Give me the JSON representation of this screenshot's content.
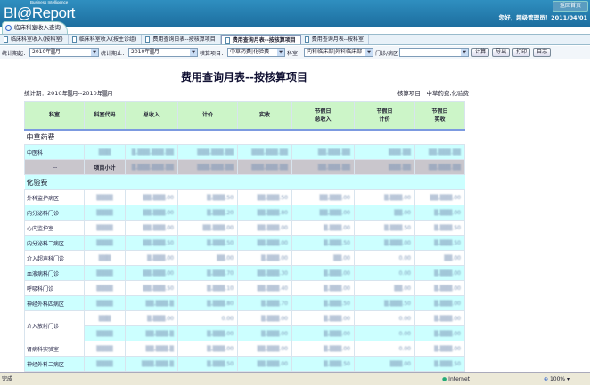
{
  "header": {
    "logo": "BI@Report",
    "logo_tagline": "Business Intelligence",
    "home_button": "返回首页",
    "greeting": "您好，超级管理员！2011/04/01"
  },
  "main_tab": "临床科室收入查询",
  "sub_tabs": [
    "临床科室收入(按科室)",
    "临床科室收入(按主诊组)",
    "费用查询日表--按核算项目",
    "费用查询月表--按核算项目",
    "费用查询月表--按科室"
  ],
  "active_sub_tab": 3,
  "filters": {
    "start_label": "统计期起：",
    "start_value": "2010年▒月",
    "end_label": "统计期止：",
    "end_value": "2010年▒月",
    "item_label": "核算项目：",
    "item_value": "中草药费|化验费",
    "dept_label": "科室：",
    "dept_value": "内科临床部|外科临床部",
    "ward_label": "门诊/病区",
    "ward_value": "",
    "buttons": [
      "计算",
      "导出",
      "打印",
      "日志"
    ]
  },
  "report": {
    "title": "费用查询月表--按核算项目",
    "period": "统计期：2010年▒月--2010年▒月",
    "items": "核算项目：中草药费,化验费",
    "columns": [
      "科室",
      "科室代码",
      "总收入",
      "计价",
      "实收",
      "节假日\n总收入",
      "节假日\n计价",
      "节假日\n实收"
    ],
    "sections": [
      {
        "name": "中草药费",
        "rows": [
          {
            "dept": "中医科",
            "code": "▒▒▒",
            "values": [
              "▒,▒▒▒,▒▒▒.▒▒",
              "▒▒▒,▒▒▒.▒▒",
              "▒▒▒,▒▒▒.▒▒",
              "▒▒,▒▒▒.▒▒",
              "▒▒▒.▒▒",
              "▒▒,▒▒▒.▒▒"
            ]
          },
          {
            "dept": "--",
            "code": "项目小计",
            "subtotal": true,
            "values": [
              "▒,▒▒▒,▒▒▒.▒▒",
              "▒▒▒,▒▒▒.▒▒",
              "▒▒▒,▒▒▒.▒▒",
              "▒▒,▒▒▒.▒▒",
              "▒▒▒.▒▒",
              "▒▒,▒▒▒.▒▒"
            ]
          }
        ]
      },
      {
        "name": "化验费",
        "rows": [
          {
            "dept": "外科监护病区",
            "code": "▒▒▒▒",
            "values": [
              "▒▒,▒▒▒.00",
              "▒,▒▒▒.50",
              "▒▒,▒▒▒.50",
              "▒▒,▒▒▒.00",
              "▒,▒▒▒.00",
              "▒▒,▒▒▒.00"
            ]
          },
          {
            "dept": "内分泌科门诊",
            "code": "▒▒▒▒",
            "values": [
              "▒▒,▒▒▒.00",
              "▒,▒▒▒.20",
              "▒▒,▒▒▒.80",
              "▒▒,▒▒▒.00",
              "▒▒.00",
              "▒,▒▒▒.00"
            ]
          },
          {
            "dept": "心内监护室",
            "code": "▒▒▒▒",
            "values": [
              "▒▒,▒▒▒.00",
              "▒▒,▒▒▒.00",
              "▒▒,▒▒▒.00",
              "▒,▒▒▒.00",
              "▒,▒▒▒.50",
              "▒,▒▒▒.50"
            ]
          },
          {
            "dept": "内分泌科二病区",
            "code": "▒▒▒▒",
            "values": [
              "▒▒,▒▒▒.50",
              "▒,▒▒▒.50",
              "▒▒,▒▒▒.00",
              "▒,▒▒▒.50",
              "▒,▒▒▒.00",
              "▒,▒▒▒.50"
            ]
          },
          {
            "dept": "介入超声科门诊",
            "code": "▒▒▒",
            "values": [
              "▒,▒▒▒.00",
              "▒▒.00",
              "▒,▒▒▒.00",
              "▒▒.00",
              "0.00",
              "▒▒.00"
            ]
          },
          {
            "dept": "血液病科门诊",
            "code": "▒▒▒▒",
            "values": [
              "▒▒,▒▒▒.00",
              "▒,▒▒▒.70",
              "▒▒,▒▒▒.30",
              "▒,▒▒▒.00",
              "0.00",
              "▒,▒▒▒.00"
            ]
          },
          {
            "dept": "呼吸科门诊",
            "code": "▒▒▒▒",
            "values": [
              "▒▒,▒▒▒.50",
              "▒,▒▒▒.10",
              "▒▒,▒▒▒.40",
              "▒,▒▒▒.00",
              "▒▒.00",
              "▒,▒▒▒.00"
            ]
          },
          {
            "dept": "神经外科四病区",
            "code": "▒▒▒▒",
            "values": [
              "▒▒,▒▒▒.▒",
              "▒,▒▒▒.80",
              "▒,▒▒▒.70",
              "▒,▒▒▒.50",
              "▒,▒▒▒.50",
              "▒,▒▒▒.00"
            ]
          },
          {
            "dept": "介入放射门诊",
            "code": "▒▒▒",
            "rowspan": 2,
            "values": [
              "▒,▒▒▒.00",
              "0.00",
              "▒,▒▒▒.00",
              "▒,▒▒▒.00",
              "0.00",
              "▒,▒▒▒.00"
            ]
          },
          {
            "dept": "",
            "code": "▒▒▒▒",
            "continued": true,
            "values": [
              "▒▒,▒▒▒.▒",
              "▒,▒▒▒.00",
              "▒,▒▒▒.00",
              "▒,▒▒▒.00",
              "0.00",
              "▒,▒▒▒.00"
            ]
          },
          {
            "dept": "肾病科实验室",
            "code": "▒▒▒▒",
            "values": [
              "▒▒,▒▒▒.▒",
              "▒,▒▒▒.00",
              "▒▒,▒▒▒.00",
              "▒,▒▒▒.00",
              "0.00",
              "▒,▒▒▒.00"
            ]
          },
          {
            "dept": "神经外科二病区",
            "code": "▒▒▒▒",
            "values": [
              "▒▒▒,▒▒▒.▒",
              "▒,▒▒▒.50",
              "▒▒,▒▒▒.00",
              "▒,▒▒▒.50",
              "▒▒▒.00",
              "▒,▒▒▒.50"
            ]
          }
        ]
      }
    ]
  },
  "status": {
    "text": "完成",
    "zone": "Internet",
    "zoom": "100%"
  },
  "colors": {
    "header": "#1d6e9f",
    "table_header": "#ccf5c8",
    "row_alt": "#ccffff",
    "subtotal": "#c9c6cc"
  }
}
